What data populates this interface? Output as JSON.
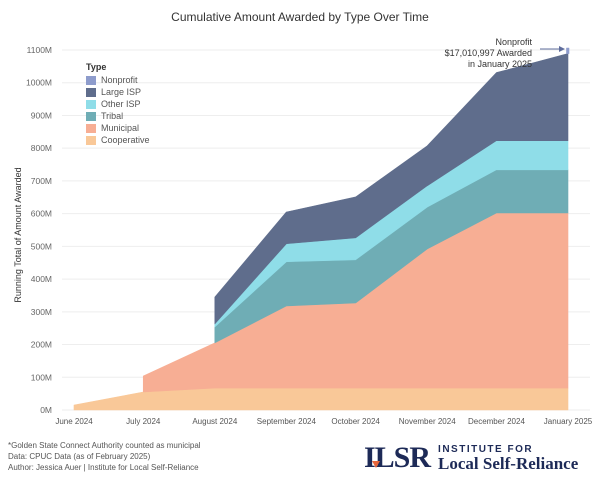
{
  "chart_data": {
    "type": "area",
    "stacked": true,
    "title": "Cumulative Amount Awarded by Type Over Time",
    "xlabel": "",
    "ylabel": "Running Total of Amount Awarded",
    "x": [
      "2024-06-01",
      "2024-07-01",
      "2024-08-01",
      "2024-09-01",
      "2024-10-01",
      "2024-11-01",
      "2024-12-01",
      "2025-01-01"
    ],
    "x_tick_labels": [
      "June 2024",
      "July 2024",
      "August 2024",
      "September 2024",
      "October 2024",
      "November 2024",
      "December 2024",
      "January 2025"
    ],
    "ylim": [
      0,
      1100
    ],
    "y_unit": "M",
    "y_ticks": [
      0,
      100,
      200,
      300,
      400,
      500,
      600,
      700,
      800,
      900,
      1000,
      1100
    ],
    "y_tick_labels": [
      "0M",
      "100M",
      "200M",
      "300M",
      "400M",
      "500M",
      "600M",
      "700M",
      "800M",
      "900M",
      "1000M",
      "1100M"
    ],
    "grid": true,
    "legend_title": "Type",
    "legend_position": "top-left",
    "series": [
      {
        "name": "Cooperative",
        "color": "#f9c898",
        "values": [
          15,
          55,
          67,
          67,
          67,
          67,
          67,
          67
        ]
      },
      {
        "name": "Municipal",
        "color": "#f7ae94",
        "values": [
          null,
          49,
          138,
          251,
          260,
          425,
          535,
          535
        ]
      },
      {
        "name": "Tribal",
        "color": "#6fadb5",
        "values": [
          null,
          null,
          49,
          135,
          132,
          128,
          132,
          132
        ]
      },
      {
        "name": "Other ISP",
        "color": "#8fdde8",
        "values": [
          null,
          null,
          9,
          55,
          67,
          65,
          89,
          89
        ]
      },
      {
        "name": "Large ISP",
        "color": "#5f6d8c",
        "values": [
          null,
          null,
          82,
          97,
          125,
          122,
          208,
          266
        ]
      },
      {
        "name": "Nonprofit",
        "color": "#8e9ccc",
        "values": [
          null,
          null,
          null,
          null,
          null,
          null,
          null,
          17
        ]
      }
    ],
    "legend_order": [
      "Nonprofit",
      "Large ISP",
      "Other ISP",
      "Tribal",
      "Municipal",
      "Cooperative"
    ],
    "annotation": {
      "lines": [
        "Nonprofit",
        "$17,010,997 Awarded",
        "in January 2025"
      ],
      "target_series": "Nonprofit",
      "target_x": "2025-01-01"
    }
  },
  "footer": {
    "lines": [
      "*Golden State Connect Authority counted as municipal",
      "Data: CPUC Data (as of February 2025)",
      "Author: Jessica Auer | Institute for Local Self-Reliance"
    ]
  },
  "logo": {
    "mark": "ILSR",
    "line1": "INSTITUTE FOR",
    "line2": "Local Self-Reliance"
  }
}
